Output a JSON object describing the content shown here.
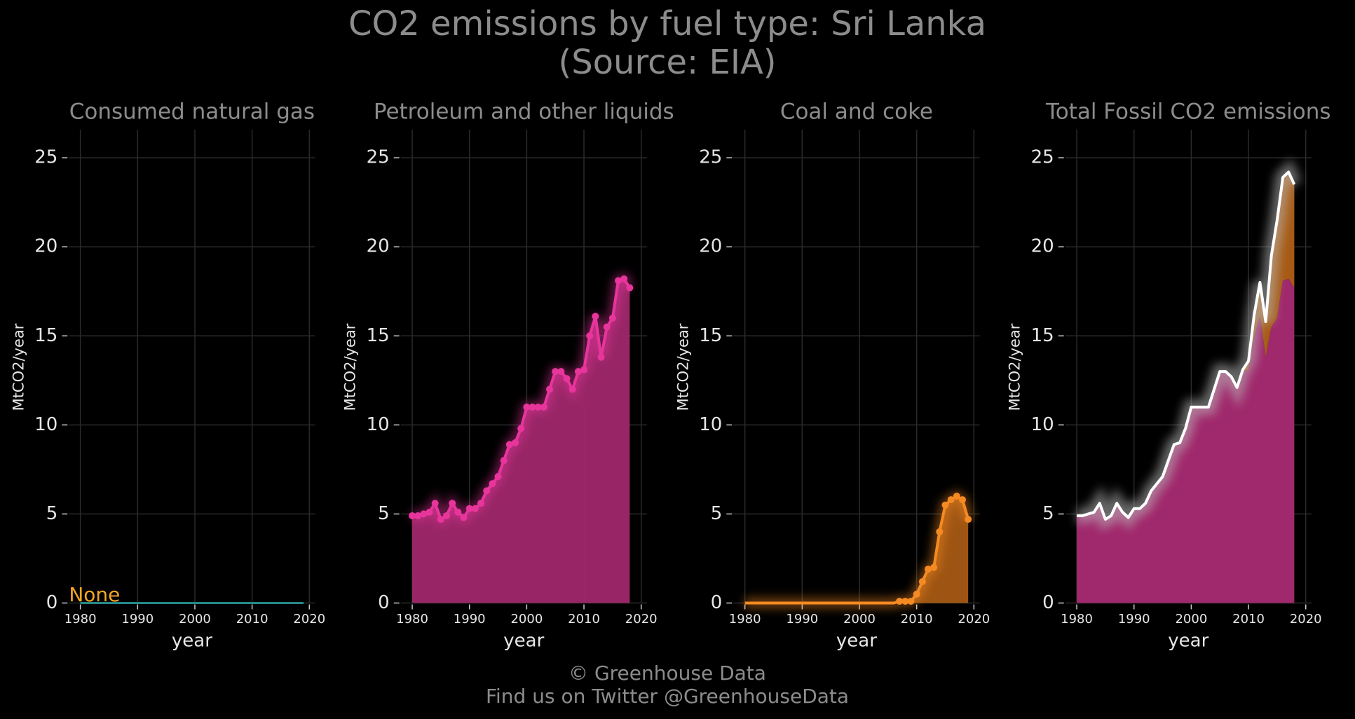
{
  "title": "CO2 emissions by fuel type: Sri Lanka",
  "subtitle": "(Source: EIA)",
  "footer": [
    "© Greenhouse Data",
    "Find us on Twitter @GreenhouseData"
  ],
  "chart_data": [
    {
      "type": "line",
      "title": "Consumed natural gas",
      "annotation": "None",
      "xlabel": "year",
      "ylabel": "MtCO2/year",
      "color": "#2fa5a5",
      "grid": true,
      "xlim": [
        1978,
        2021
      ],
      "ylim": [
        0,
        26.5
      ],
      "xticks": [
        1980,
        1990,
        2000,
        2010,
        2020
      ],
      "yticks": [
        0,
        5,
        10,
        15,
        20,
        25
      ],
      "x": [
        1980,
        1981,
        1982,
        1983,
        1984,
        1985,
        1986,
        1987,
        1988,
        1989,
        1990,
        1991,
        1992,
        1993,
        1994,
        1995,
        1996,
        1997,
        1998,
        1999,
        2000,
        2001,
        2002,
        2003,
        2004,
        2005,
        2006,
        2007,
        2008,
        2009,
        2010,
        2011,
        2012,
        2013,
        2014,
        2015,
        2016,
        2017,
        2018,
        2019
      ],
      "values": [
        0,
        0,
        0,
        0,
        0,
        0,
        0,
        0,
        0,
        0,
        0,
        0,
        0,
        0,
        0,
        0,
        0,
        0,
        0,
        0,
        0,
        0,
        0,
        0,
        0,
        0,
        0,
        0,
        0,
        0,
        0,
        0,
        0,
        0,
        0,
        0,
        0,
        0,
        0,
        0
      ]
    },
    {
      "type": "line",
      "title": "Petroleum and other liquids",
      "xlabel": "year",
      "ylabel": "MtCO2/year",
      "color": "#e8359c",
      "fill": "#a0286c",
      "grid": true,
      "xlim": [
        1978,
        2021
      ],
      "ylim": [
        0,
        26.5
      ],
      "xticks": [
        1980,
        1990,
        2000,
        2010,
        2020
      ],
      "yticks": [
        0,
        5,
        10,
        15,
        20,
        25
      ],
      "x": [
        1980,
        1981,
        1982,
        1983,
        1984,
        1985,
        1986,
        1987,
        1988,
        1989,
        1990,
        1991,
        1992,
        1993,
        1994,
        1995,
        1996,
        1997,
        1998,
        1999,
        2000,
        2001,
        2002,
        2003,
        2004,
        2005,
        2006,
        2007,
        2008,
        2009,
        2010,
        2011,
        2012,
        2013,
        2014,
        2015,
        2016,
        2017,
        2018
      ],
      "values": [
        4.9,
        4.9,
        5.0,
        5.1,
        5.6,
        4.7,
        4.9,
        5.6,
        5.1,
        4.8,
        5.3,
        5.3,
        5.6,
        6.3,
        6.7,
        7.1,
        8.0,
        8.9,
        9.0,
        9.8,
        11.0,
        11.0,
        11.0,
        11.0,
        12.0,
        13.0,
        13.0,
        12.6,
        12.0,
        13.0,
        13.1,
        15.0,
        16.1,
        13.8,
        15.5,
        16.0,
        18.1,
        18.2,
        17.7
      ]
    },
    {
      "type": "line",
      "title": "Coal and coke",
      "xlabel": "year",
      "ylabel": "MtCO2/year",
      "color": "#f58a22",
      "fill": "#a65a14",
      "grid": true,
      "xlim": [
        1978,
        2021
      ],
      "ylim": [
        0,
        26.5
      ],
      "xticks": [
        1980,
        1990,
        2000,
        2010,
        2020
      ],
      "yticks": [
        0,
        5,
        10,
        15,
        20,
        25
      ],
      "x": [
        1980,
        1981,
        1982,
        1983,
        1984,
        1985,
        1986,
        1987,
        1988,
        1989,
        1990,
        1991,
        1992,
        1993,
        1994,
        1995,
        1996,
        1997,
        1998,
        1999,
        2000,
        2001,
        2002,
        2003,
        2004,
        2005,
        2006,
        2007,
        2008,
        2009,
        2010,
        2011,
        2012,
        2013,
        2014,
        2015,
        2016,
        2017,
        2018,
        2019
      ],
      "values": [
        0,
        0,
        0,
        0,
        0,
        0,
        0,
        0,
        0,
        0,
        0,
        0,
        0,
        0,
        0,
        0,
        0,
        0,
        0,
        0,
        0,
        0,
        0,
        0,
        0,
        0,
        0,
        0.1,
        0.1,
        0.1,
        0.5,
        1.2,
        1.9,
        2.0,
        4.0,
        5.5,
        5.8,
        6.0,
        5.8,
        4.7
      ]
    },
    {
      "type": "total",
      "title": "Total Fossil CO2 emissions",
      "xlabel": "year",
      "ylabel": "MtCO2/year",
      "color": "#ffffff",
      "grid": true,
      "xlim": [
        1978,
        2021
      ],
      "ylim": [
        0,
        26.5
      ],
      "xticks": [
        1980,
        1990,
        2000,
        2010,
        2020
      ],
      "yticks": [
        0,
        5,
        10,
        15,
        20,
        25
      ],
      "x": [
        1980,
        1981,
        1982,
        1983,
        1984,
        1985,
        1986,
        1987,
        1988,
        1989,
        1990,
        1991,
        1992,
        1993,
        1994,
        1995,
        1996,
        1997,
        1998,
        1999,
        2000,
        2001,
        2002,
        2003,
        2004,
        2005,
        2006,
        2007,
        2008,
        2009,
        2010,
        2011,
        2012,
        2013,
        2014,
        2015,
        2016,
        2017,
        2018
      ],
      "values": [
        4.9,
        4.9,
        5.0,
        5.1,
        5.6,
        4.7,
        4.9,
        5.6,
        5.1,
        4.8,
        5.3,
        5.3,
        5.6,
        6.3,
        6.7,
        7.1,
        8.0,
        8.9,
        9.0,
        9.8,
        11.0,
        11.0,
        11.0,
        11.0,
        12.0,
        13.0,
        13.0,
        12.7,
        12.1,
        13.1,
        13.6,
        16.2,
        18.0,
        15.8,
        19.5,
        21.5,
        23.9,
        24.2,
        23.5
      ]
    }
  ]
}
